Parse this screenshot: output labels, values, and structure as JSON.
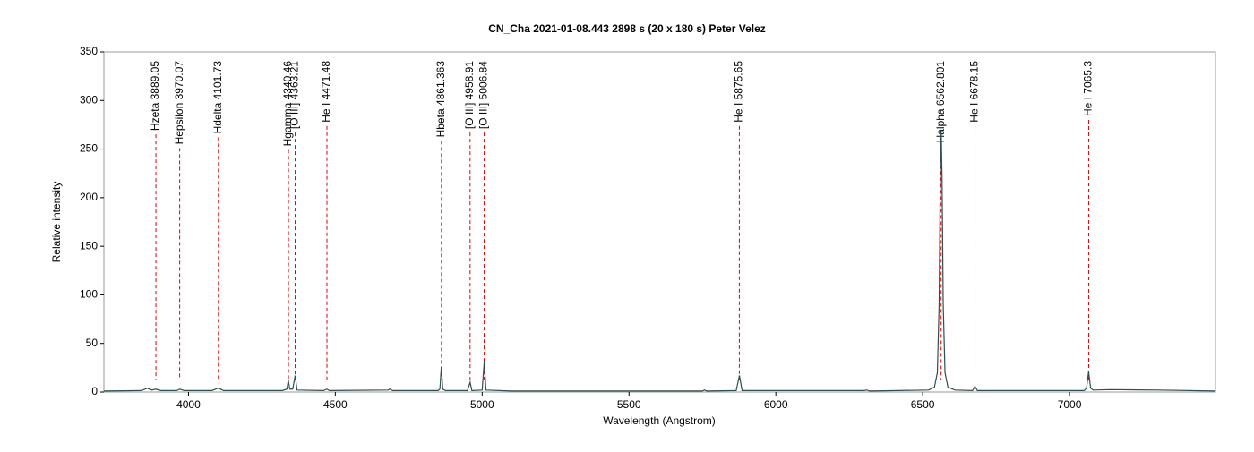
{
  "chart_data": {
    "type": "line",
    "title": "CN_Cha   2021-01-08.443   2898 s (20 x 180 s)   Peter Velez",
    "x_label": "Wavelength (Angstrom)",
    "y_label": "Relative intensity",
    "xlim": [
      3712,
      7497
    ],
    "ylim": [
      0,
      350
    ],
    "xticks": [
      4000,
      4500,
      5000,
      5500,
      6000,
      6500,
      7000
    ],
    "yticks": [
      0,
      50,
      100,
      150,
      200,
      250,
      300,
      350
    ],
    "color": "#2f4f4f",
    "x": [
      3712,
      3840,
      3860,
      3875,
      3889,
      3905,
      3960,
      3970,
      3985,
      4080,
      4101,
      4120,
      4320,
      4335,
      4340,
      4345,
      4355,
      4363,
      4370,
      4460,
      4471,
      4480,
      4680,
      4686,
      4695,
      4850,
      4856,
      4861,
      4866,
      4875,
      4950,
      4959,
      4965,
      5000,
      5007,
      5013,
      5100,
      5750,
      5757,
      5765,
      5865,
      5876,
      5885,
      6300,
      6310,
      6320,
      6520,
      6540,
      6550,
      6556,
      6560,
      6563,
      6566,
      6570,
      6576,
      6586,
      6610,
      6670,
      6678,
      6686,
      7050,
      7058,
      7065,
      7072,
      7080,
      7140,
      7300,
      7497
    ],
    "values": [
      1,
      1.5,
      4,
      2,
      3,
      1.5,
      1.5,
      3,
      1.5,
      1.5,
      4,
      1.5,
      1.5,
      3,
      12,
      3,
      3,
      17,
      2,
      1.5,
      3,
      1.5,
      2,
      3,
      1.5,
      1.5,
      3,
      26,
      3,
      1.5,
      1.5,
      10,
      1.5,
      2,
      31,
      2,
      1,
      1,
      2,
      1,
      1.5,
      17,
      1.5,
      1.5,
      2,
      1,
      2,
      5,
      20,
      90,
      220,
      270,
      220,
      90,
      20,
      5,
      2,
      1.5,
      6,
      1.5,
      1.5,
      4,
      21,
      4,
      2,
      2.5,
      2,
      1
    ],
    "annotation_color": "#e00000",
    "annotations": [
      {
        "label": "Hzeta 3889.05",
        "x": 3889.05
      },
      {
        "label": "Hepsilon 3970.07",
        "x": 3970.07
      },
      {
        "label": "Hdelta 4101.73",
        "x": 4101.73
      },
      {
        "label": "Hgamma 4340.46",
        "x": 4340.46
      },
      {
        "label": "[O III] 4363.21",
        "x": 4363.21
      },
      {
        "label": "He I 4471.48",
        "x": 4471.48
      },
      {
        "label": "Hbeta 4861.363",
        "x": 4861.363
      },
      {
        "label": "[O III] 4958.91",
        "x": 4958.91
      },
      {
        "label": "[O III] 5006.84",
        "x": 5006.84
      },
      {
        "label": "He I 5875.65",
        "x": 5875.65
      },
      {
        "label": "Halpha 6562.801",
        "x": 6562.801
      },
      {
        "label": "He I 6678.15",
        "x": 6678.15
      },
      {
        "label": "He I 7065.3",
        "x": 7065.3
      }
    ]
  }
}
